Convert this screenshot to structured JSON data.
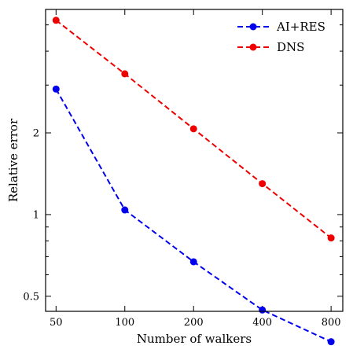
{
  "chart_data": {
    "type": "line",
    "xlabel": "Number of walkers",
    "ylabel": "Relative error",
    "x_scale": "log",
    "y_scale": "log",
    "x": [
      50,
      100,
      200,
      400,
      800
    ],
    "x_tick_labels": [
      "50",
      "100",
      "200",
      "400",
      "800"
    ],
    "y_tick_values": [
      0.5,
      1,
      2
    ],
    "y_tick_labels": [
      "0.5",
      "1",
      "2"
    ],
    "xlim": [
      45,
      900
    ],
    "ylim": [
      0.44,
      5.7
    ],
    "series": [
      {
        "name": "AI+RES",
        "color": "#0000ee",
        "values": [
          2.9,
          1.04,
          0.67,
          0.445,
          0.34
        ]
      },
      {
        "name": "DNS",
        "color": "#ee0000",
        "values": [
          5.2,
          3.3,
          2.07,
          1.3,
          0.82
        ]
      }
    ],
    "legend_position": "top-right",
    "grid": false
  }
}
